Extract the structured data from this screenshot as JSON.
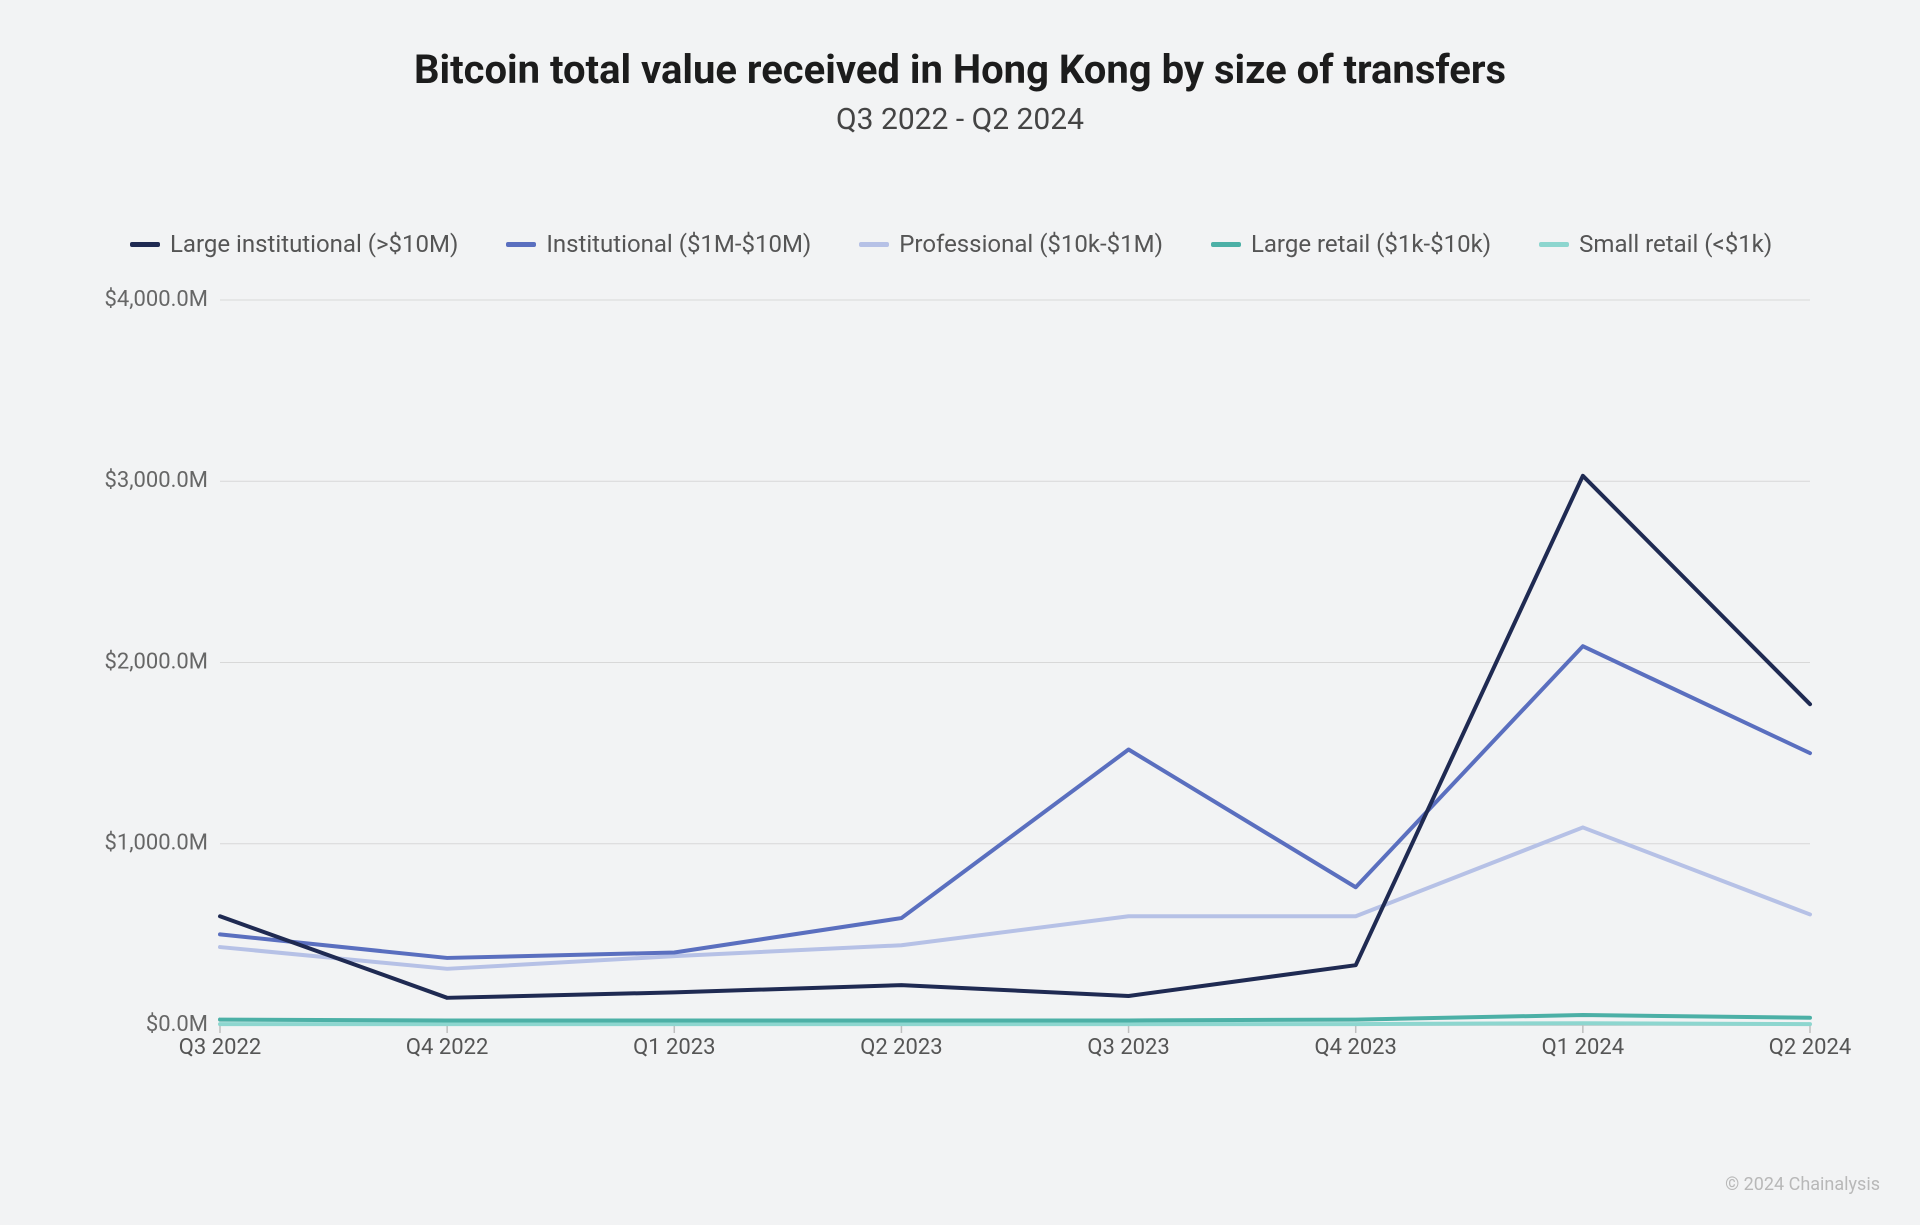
{
  "chart": {
    "type": "line",
    "title": "Bitcoin total value received in Hong Kong by size of transfers",
    "subtitle": "Q3 2022 - Q2 2024",
    "title_fontsize": 40,
    "subtitle_fontsize": 30,
    "background_color": "#f2f3f4",
    "grid_color": "#d8d8d8",
    "axis_color": "#bfbfbf",
    "tick_label_color": "#666",
    "x_categories": [
      "Q3 2022",
      "Q4 2022",
      "Q1 2023",
      "Q2 2023",
      "Q3 2023",
      "Q4 2023",
      "Q1 2024",
      "Q2 2024"
    ],
    "y": {
      "min": 0,
      "max": 4000,
      "tick_step": 1000,
      "tick_labels": [
        "$0.0M",
        "$1,000.0M",
        "$2,000.0M",
        "$3,000.0M",
        "$4,000.0M"
      ]
    },
    "line_width": 4,
    "series": [
      {
        "name": "Large institutional (>$10M)",
        "color": "#1f2a52",
        "values": [
          600,
          150,
          180,
          220,
          160,
          330,
          3030,
          1770
        ]
      },
      {
        "name": "Institutional ($1M-$10M)",
        "color": "#5a6fbf",
        "values": [
          500,
          370,
          400,
          590,
          1520,
          760,
          2090,
          1500
        ]
      },
      {
        "name": "Professional ($10k-$1M)",
        "color": "#b6c1e6",
        "values": [
          430,
          310,
          380,
          440,
          600,
          600,
          1090,
          610
        ]
      },
      {
        "name": "Large retail ($1k-$10k)",
        "color": "#4cb0a6",
        "values": [
          30,
          25,
          25,
          25,
          25,
          30,
          55,
          40
        ]
      },
      {
        "name": "Small retail (<$1k)",
        "color": "#8dd6cf",
        "values": [
          5,
          5,
          5,
          5,
          5,
          5,
          10,
          5
        ]
      }
    ],
    "attribution": "© 2024 Chainalysis"
  }
}
